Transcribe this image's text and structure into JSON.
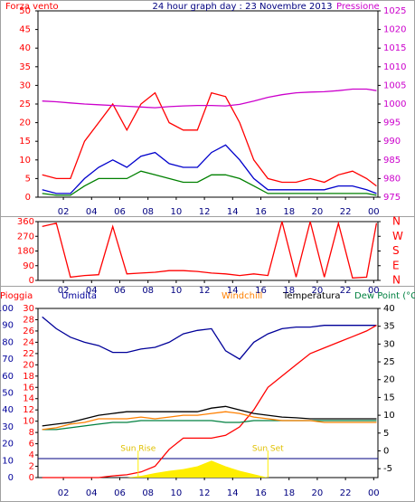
{
  "chart_data": [
    {
      "type": "line",
      "title": "24 hour graph day : 23 Novembre 2013",
      "left_label": "Forza vento",
      "right_label": "Pressione",
      "x": [
        0.5,
        1.5,
        2.5,
        3.5,
        4.5,
        5.5,
        6.5,
        7.5,
        8.5,
        9.5,
        10.5,
        11.5,
        12.5,
        13.5,
        14.5,
        15.5,
        16.5,
        17.5,
        18.5,
        19.5,
        20.5,
        21.5,
        22.5,
        23.5,
        24.2
      ],
      "xlim": [
        0.2,
        24.3
      ],
      "xticks": [
        {
          "value": 2,
          "label": "02"
        },
        {
          "value": 4,
          "label": "04"
        },
        {
          "value": 6,
          "label": "06"
        },
        {
          "value": 8,
          "label": "08"
        },
        10,
        12,
        14,
        16,
        18,
        20,
        22,
        {
          "value": 24,
          "label": "00"
        }
      ],
      "ylim": [
        0,
        50
      ],
      "yticks": [
        0,
        5,
        10,
        15,
        20,
        25,
        30,
        35,
        40,
        45,
        50
      ],
      "y2lim": [
        975,
        1025
      ],
      "y2ticks": [
        975,
        980,
        985,
        990,
        995,
        1000,
        1005,
        1010,
        1015,
        1020,
        1025
      ],
      "series": [
        {
          "name": "Forza vento",
          "color": "#ff0000",
          "values": [
            6,
            5,
            5,
            15,
            20,
            25,
            18,
            25,
            28,
            20,
            18,
            18,
            28,
            27,
            20,
            10,
            5,
            4,
            4,
            5,
            4,
            6,
            7,
            5,
            3
          ]
        },
        {
          "color": "#0000cc",
          "values": [
            2,
            1,
            1,
            5,
            8,
            10,
            8,
            11,
            12,
            9,
            8,
            8,
            12,
            14,
            10,
            5,
            2,
            2,
            2,
            2,
            2,
            3,
            3,
            2,
            1
          ]
        },
        {
          "color": "#008000",
          "values": [
            1,
            0.5,
            0.5,
            3,
            5,
            5,
            5,
            7,
            6,
            5,
            4,
            4,
            6,
            6,
            5,
            3,
            1,
            1,
            1,
            1,
            1,
            1,
            1,
            1,
            0.5
          ]
        },
        {
          "name": "Pressione",
          "color": "#cc00cc",
          "axis": "y2",
          "values": [
            1000.8,
            1000.6,
            1000.3,
            1000,
            999.8,
            999.6,
            999.4,
            999.2,
            999.0,
            999.3,
            999.5,
            999.6,
            999.6,
            999.5,
            999.9,
            1000.8,
            1001.8,
            1002.5,
            1003,
            1003.2,
            1003.3,
            1003.6,
            1004,
            1004,
            1003.6
          ]
        }
      ]
    },
    {
      "type": "line",
      "x": [
        0.5,
        1.5,
        2.5,
        3.5,
        4.5,
        5.5,
        6.5,
        7.5,
        8.5,
        9.5,
        10.5,
        11.5,
        12.5,
        13.5,
        14.5,
        15.5,
        16.5,
        17.5,
        18.5,
        19.5,
        20.5,
        21.5,
        22.5,
        23.5,
        24.2
      ],
      "xlim": [
        0.2,
        24.3
      ],
      "xticks": [
        {
          "value": 2,
          "label": "02"
        },
        {
          "value": 4,
          "label": "04"
        },
        {
          "value": 6,
          "label": "06"
        },
        {
          "value": 8,
          "label": "08"
        },
        10,
        12,
        14,
        16,
        18,
        20,
        22,
        {
          "value": 24,
          "label": "00"
        }
      ],
      "ylim": [
        0,
        360
      ],
      "yticks": [
        0,
        90,
        180,
        270,
        360
      ],
      "y2lim": [
        0,
        360
      ],
      "y2ticks": [
        {
          "value": 360,
          "label": "N"
        },
        {
          "value": 270,
          "label": "W"
        },
        {
          "value": 180,
          "label": "S"
        },
        {
          "value": 90,
          "label": "E"
        },
        {
          "value": 0,
          "label": "N"
        }
      ],
      "series": [
        {
          "color": "#ff0000",
          "values": [
            330,
            350,
            20,
            30,
            35,
            330,
            40,
            45,
            50,
            60,
            60,
            55,
            45,
            40,
            30,
            40,
            30,
            360,
            20,
            360,
            20,
            350,
            15,
            20,
            350
          ]
        }
      ]
    },
    {
      "type": "line",
      "labels": [
        "Pioggia",
        "Umidita",
        "Windchill",
        "Temperatura",
        "Dew Point (°C"
      ],
      "x": [
        0.5,
        1.5,
        2.5,
        3.5,
        4.5,
        5.5,
        6.5,
        7.5,
        8.5,
        9.5,
        10.5,
        11.5,
        12.5,
        13.5,
        14.5,
        15.5,
        16.5,
        17.5,
        18.5,
        19.5,
        20.5,
        21.5,
        22.5,
        23.5,
        24.2
      ],
      "xlim": [
        0.2,
        24.3
      ],
      "xticks": [
        {
          "value": 2,
          "label": "02"
        },
        {
          "value": 4,
          "label": "04"
        },
        {
          "value": 6,
          "label": "06"
        },
        {
          "value": 8,
          "label": "08"
        },
        10,
        12,
        14,
        16,
        18,
        20,
        22,
        {
          "value": 24,
          "label": "00"
        }
      ],
      "ylim": [
        0,
        30
      ],
      "yticks": [
        0,
        2,
        4,
        6,
        8,
        10,
        12,
        14,
        16,
        18,
        20,
        22,
        24,
        26,
        28,
        30
      ],
      "y3lim": [
        0,
        100
      ],
      "y3ticks": [
        0,
        10,
        20,
        30,
        40,
        50,
        60,
        70,
        80,
        90,
        100
      ],
      "y2lim": [
        -7.5,
        40
      ],
      "y2ticks": [
        -5,
        0,
        5,
        10,
        15,
        20,
        25,
        30,
        35,
        40
      ],
      "annotations": [
        {
          "text": "Sun Rise",
          "x": 7.3
        },
        {
          "text": "Sun Set",
          "x": 16.5
        }
      ],
      "series": [
        {
          "color": "#ffee00",
          "area": true,
          "values": [
            0,
            0,
            0,
            0,
            0,
            0,
            0,
            0.3,
            0.8,
            1.2,
            1.5,
            2,
            3,
            2,
            1.2,
            0.6,
            0,
            0,
            0,
            0,
            0,
            0,
            0,
            0,
            0
          ]
        },
        {
          "name": "Umidita",
          "color": "#000099",
          "axis": "y3",
          "values": [
            95,
            88,
            83,
            80,
            78,
            74,
            74,
            76,
            77,
            80,
            85,
            87,
            88,
            75,
            70,
            80,
            85,
            88,
            89,
            89,
            90,
            90,
            90,
            90,
            90
          ]
        },
        {
          "name": "Pioggia",
          "color": "#ff0000",
          "values": [
            0,
            0,
            0,
            0,
            0,
            0.3,
            0.5,
            1,
            2,
            5,
            7,
            7,
            7,
            7.5,
            9,
            12,
            16,
            18,
            20,
            22,
            23,
            24,
            25,
            26,
            27
          ]
        },
        {
          "name": "Dew Point (°C",
          "color": "#008040",
          "axis": "y2",
          "values": [
            6,
            6,
            6.5,
            7,
            7.5,
            8,
            8,
            8.5,
            8.5,
            8.5,
            8.5,
            8.5,
            8.5,
            8,
            8,
            8.5,
            8.5,
            8.5,
            8.5,
            8.5,
            8.5,
            8.5,
            8.5,
            8.5,
            8.5
          ]
        },
        {
          "name": "Windchill",
          "color": "#ff8000",
          "axis": "y2",
          "values": [
            6,
            6.5,
            7.5,
            8,
            9,
            9,
            9,
            9.5,
            9,
            9.5,
            10,
            10,
            10.5,
            11,
            10.5,
            9.5,
            9,
            8.5,
            8.5,
            8.5,
            8,
            8,
            8,
            8,
            8
          ]
        },
        {
          "name": "Temperatura",
          "color": "#000000",
          "axis": "y2",
          "values": [
            7,
            7.5,
            8,
            9,
            10,
            10.5,
            11,
            11,
            11,
            11,
            11,
            11,
            12,
            12.5,
            11.5,
            10.5,
            10,
            9.5,
            9.3,
            9,
            9,
            9,
            9,
            9,
            9
          ]
        }
      ]
    }
  ]
}
